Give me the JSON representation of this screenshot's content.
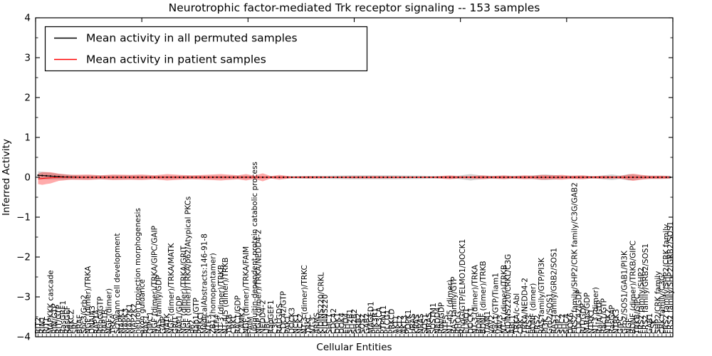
{
  "figure": {
    "title": "Neurotrophic factor-mediated Trk receptor signaling -- 153 samples",
    "xlabel": "Cellular Entities",
    "ylabel": "Inferred Activity",
    "legend": {
      "position": "upper left",
      "entries": [
        {
          "label": "Mean activity in all permuted samples",
          "color": "#000000"
        },
        {
          "label": "Mean activity in patient samples",
          "color": "#ff0000"
        }
      ]
    }
  },
  "chart_data": {
    "type": "line",
    "title": "Neurotrophic factor-mediated Trk receptor signaling -- 153 samples",
    "xlabel": "Cellular Entities",
    "ylabel": "Inferred Activity",
    "n_samples": 153,
    "ylim": [
      -4,
      4
    ],
    "grid": false,
    "legend_position": "upper left",
    "yticks": [
      {
        "v": 4,
        "label": "4"
      },
      {
        "v": 3,
        "label": "3"
      },
      {
        "v": 2,
        "label": "2"
      },
      {
        "v": 1,
        "label": "1"
      },
      {
        "v": 0,
        "label": "0"
      },
      {
        "v": -1,
        "label": "−1"
      },
      {
        "v": -2,
        "label": "−2"
      },
      {
        "v": -3,
        "label": "−3"
      },
      {
        "v": -4,
        "label": "−4"
      }
    ],
    "categories": [
      "RIT2",
      "RIN1",
      "RIT1",
      "MAPKKK cascade",
      "RIN/GTP",
      "RIT/GTP",
      "RasGRF1",
      "RasGEF",
      "PRKCZ",
      "SRC",
      "BRAF",
      "Shc3/Grb2",
      "NGF (dimer)/TRKA",
      "DNAJA3",
      "RAP1A",
      "RhoG/GTP",
      "RAP1B",
      "NGF (dimer)",
      "TRKA",
      "Schwann cell development",
      "MAPK1",
      "MAPK3",
      "MAP2K1",
      "MAP2K2",
      "neuron projection morphogenesis",
      "axon guidance",
      "RAF1",
      "GIPC1",
      "NGF (dimer)/TRKA/GIPC/GAIP",
      "RAS family/GDP",
      "GAIP",
      "MATK",
      "NGF (dimer)/TRKA/MATK",
      "GRIT",
      "RAP1/GDP",
      "NGF (dimer)/TRKA/GRIT",
      "NGF (dimer)/TRKA/p62/Atypical PKCs",
      "p62",
      "Rap1/GTP",
      "PRKCI",
      "MedicalAbstracts:146-91-8",
      "NTF3",
      "ZB1 (homopentamer)",
      "NTF4",
      "NT-3 (dimer)/TRKB",
      "NT-4/5 (dimer)/TRKB",
      "TRKB",
      "CRKL",
      "RAC1/GDP",
      "CAMK2",
      "NGF (dimer)/TRKA/FAIM",
      "FAIM",
      "ubiquitin-dependent protein catabolic process",
      "NGF (dimer)/TRKA/NEDD4-2",
      "NEDD4-2",
      "UBC",
      "RapGEF1",
      "C3G",
      "RALGDS",
      "CDC42/GTP",
      "PAK1",
      "DOCK3",
      "NCK1",
      "NCK2",
      "NT-3 (dimer)/TRKC",
      "TRKC",
      "NT-3",
      "ARMS",
      "KIDINS220/CRKL",
      "KIDINS220",
      "SHC1",
      "CDC42",
      "DOK1",
      "DOK4",
      "EHD4",
      "SH2B1",
      "SH2B2",
      "GRB2",
      "SOS2",
      "GAB2",
      "MAGED1",
      "PIK3R1",
      "PIK3CA",
      "PTPN11",
      "PLCG1",
      "PRKCD",
      "AKT1",
      "AKT2",
      "AKT3",
      "PDPK1",
      "HRAS",
      "KRAS",
      "NRAS",
      "SOS1",
      "MRAS",
      "SQSTM1",
      "NEDD4",
      "RIN/GDP",
      "NTF5",
      "NT-4/5 (dimer)",
      "RAS family/GTP",
      "RHOG",
      "RhoG/GTP/ELMO1/DOCK1",
      "ELMO1",
      "DOCK1",
      "NT-3 (dimer)/TRKA",
      "BDNF",
      "BDNF (dimer)/TRKB",
      "TIAM1",
      "VAV2",
      "Rac1/GTP/Tiam1",
      "VAV3",
      "NT-4 (dimer)/TRKB",
      "KIDINS220/CRKL/C3G",
      "ABL1",
      "TRKA/c-Abl",
      "CRK",
      "TRKA/NEDD4-2",
      "FRS3",
      "BDNF (dimer)",
      "FRS2",
      "RAS family/GTP/PI3K",
      "PI3K",
      "Grb2/SOS1",
      "RAS family/GRB2/SOS1",
      "SHP2",
      "SHC2",
      "SHC4",
      "DOK6",
      "FRS2 family/SHP2/CRK family/C3G/GAB2",
      "CDC42/GDP",
      "RIT/GDP",
      "M-Ras/GDP",
      "NTRK1",
      "NT-3 (dimer)",
      "RalA/GTP",
      "Rac1/GTP",
      "NTRK2",
      "RasGAP",
      "NTRK3",
      "GIPC",
      "Grb2/SOS1/GAB1/PI3K",
      "NGF",
      "BDNF (dimer)/TRKB/GIPC",
      "TRKB/GIPC",
      "FRS2 family/SHP2",
      "FRS2 family/GRB2/SOS1",
      "GAB1",
      "CSK",
      "SHP2/CRK family",
      "CRK family/C3G",
      "FRS2 family/SHP2/CRK family",
      "FRS2 family/SHP2/GRB2/SOS1"
    ],
    "series": [
      {
        "name": "Mean activity in all permuted samples",
        "color": "#000000",
        "style": "solid line with point markers",
        "mean_anchors": [
          [
            0,
            0.05
          ],
          [
            3,
            0.03
          ],
          [
            6,
            0.01
          ],
          [
            10,
            0.0
          ],
          [
            152,
            0.0
          ]
        ],
        "band": {
          "label": "std of permuted samples",
          "color": "rgba(128,128,128,0.35)",
          "halfwidth_anchors": [
            [
              0,
              0.1
            ],
            [
              2,
              0.09
            ],
            [
              5,
              0.07
            ],
            [
              10,
              0.05
            ],
            [
              20,
              0.05
            ],
            [
              30,
              0.04
            ],
            [
              40,
              0.04
            ],
            [
              50,
              0.04
            ],
            [
              55,
              0.03
            ],
            [
              60,
              0.03
            ],
            [
              70,
              0.04
            ],
            [
              76,
              0.05
            ],
            [
              85,
              0.05
            ],
            [
              92,
              0.04
            ],
            [
              97,
              0.03
            ],
            [
              101,
              0.04
            ],
            [
              104,
              0.08
            ],
            [
              107,
              0.04
            ],
            [
              112,
              0.04
            ],
            [
              118,
              0.04
            ],
            [
              122,
              0.07
            ],
            [
              126,
              0.04
            ],
            [
              131,
              0.04
            ],
            [
              134,
              0.03
            ],
            [
              138,
              0.07
            ],
            [
              140,
              0.04
            ],
            [
              142,
              0.08
            ],
            [
              145,
              0.05
            ],
            [
              148,
              0.04
            ],
            [
              152,
              0.04
            ]
          ]
        }
      },
      {
        "name": "Mean activity in patient samples",
        "color": "#ff0000",
        "style": "solid line",
        "mean_anchors": [
          [
            0,
            -0.04
          ],
          [
            2,
            -0.02
          ],
          [
            5,
            0.0
          ],
          [
            152,
            0.0
          ]
        ],
        "band": {
          "label": "std of patient samples",
          "color": "rgba(255,0,0,0.33)",
          "halfwidth_anchors": [
            [
              0,
              0.13
            ],
            [
              1,
              0.16
            ],
            [
              3,
              0.14
            ],
            [
              5,
              0.09
            ],
            [
              8,
              0.06
            ],
            [
              12,
              0.07
            ],
            [
              15,
              0.05
            ],
            [
              18,
              0.07
            ],
            [
              22,
              0.06
            ],
            [
              25,
              0.07
            ],
            [
              28,
              0.05
            ],
            [
              31,
              0.08
            ],
            [
              34,
              0.06
            ],
            [
              37,
              0.05
            ],
            [
              40,
              0.06
            ],
            [
              44,
              0.08
            ],
            [
              48,
              0.05
            ],
            [
              50,
              0.08
            ],
            [
              52,
              0.04
            ],
            [
              54,
              0.1
            ],
            [
              56,
              0.03
            ],
            [
              58,
              0.06
            ],
            [
              61,
              0.02
            ],
            [
              65,
              0.03
            ],
            [
              70,
              0.02
            ],
            [
              80,
              0.03
            ],
            [
              90,
              0.02
            ],
            [
              95,
              0.02
            ],
            [
              99,
              0.05
            ],
            [
              101,
              0.03
            ],
            [
              104,
              0.03
            ],
            [
              107,
              0.05
            ],
            [
              109,
              0.03
            ],
            [
              112,
              0.05
            ],
            [
              114,
              0.03
            ],
            [
              117,
              0.05
            ],
            [
              119,
              0.04
            ],
            [
              121,
              0.06
            ],
            [
              124,
              0.05
            ],
            [
              126,
              0.06
            ],
            [
              128,
              0.04
            ],
            [
              131,
              0.05
            ],
            [
              133,
              0.03
            ],
            [
              136,
              0.04
            ],
            [
              139,
              0.03
            ],
            [
              141,
              0.05
            ],
            [
              143,
              0.09
            ],
            [
              145,
              0.06
            ],
            [
              147,
              0.04
            ],
            [
              150,
              0.04
            ],
            [
              152,
              0.03
            ]
          ]
        }
      }
    ]
  }
}
